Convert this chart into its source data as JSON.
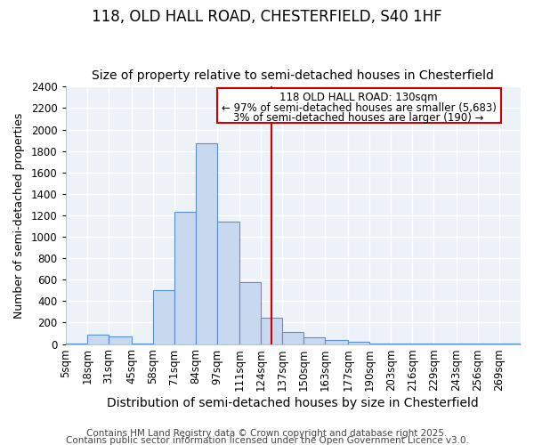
{
  "title1": "118, OLD HALL ROAD, CHESTERFIELD, S40 1HF",
  "title2": "Size of property relative to semi-detached houses in Chesterfield",
  "xlabel": "Distribution of semi-detached houses by size in Chesterfield",
  "ylabel": "Number of semi-detached properties",
  "categories": [
    "5sqm",
    "18sqm",
    "31sqm",
    "45sqm",
    "58sqm",
    "71sqm",
    "84sqm",
    "97sqm",
    "111sqm",
    "124sqm",
    "137sqm",
    "150sqm",
    "163sqm",
    "177sqm",
    "190sqm",
    "203sqm",
    "216sqm",
    "229sqm",
    "243sqm",
    "256sqm",
    "269sqm"
  ],
  "bin_edges": [
    5,
    18,
    31,
    45,
    58,
    71,
    84,
    97,
    111,
    124,
    137,
    150,
    163,
    177,
    190,
    203,
    216,
    229,
    243,
    256,
    269,
    282
  ],
  "bar_heights": [
    5,
    85,
    75,
    5,
    500,
    1230,
    1870,
    1140,
    580,
    245,
    115,
    65,
    40,
    20,
    5,
    5,
    5,
    5,
    5,
    5,
    5
  ],
  "bar_color": "#c8d8ee",
  "bar_edge_color": "#5b8fd4",
  "background_color": "#edf1f8",
  "grid_color": "#ffffff",
  "vline_x": 130.5,
  "vline_color": "#cc0000",
  "ylim": [
    0,
    2400
  ],
  "yticks": [
    0,
    200,
    400,
    600,
    800,
    1000,
    1200,
    1400,
    1600,
    1800,
    2000,
    2200,
    2400
  ],
  "annotation_title": "118 OLD HALL ROAD: 130sqm",
  "annotation_line1": "← 97% of semi-detached houses are smaller (5,683)",
  "annotation_line2": "3% of semi-detached houses are larger (190) →",
  "annotation_box_color": "#cc0000",
  "footer1": "Contains HM Land Registry data © Crown copyright and database right 2025.",
  "footer2": "Contains public sector information licensed under the Open Government Licence v3.0.",
  "title1_fontsize": 12,
  "title2_fontsize": 10,
  "xlabel_fontsize": 10,
  "ylabel_fontsize": 9,
  "tick_fontsize": 8.5,
  "annotation_fontsize": 8.5,
  "footer_fontsize": 7.5
}
